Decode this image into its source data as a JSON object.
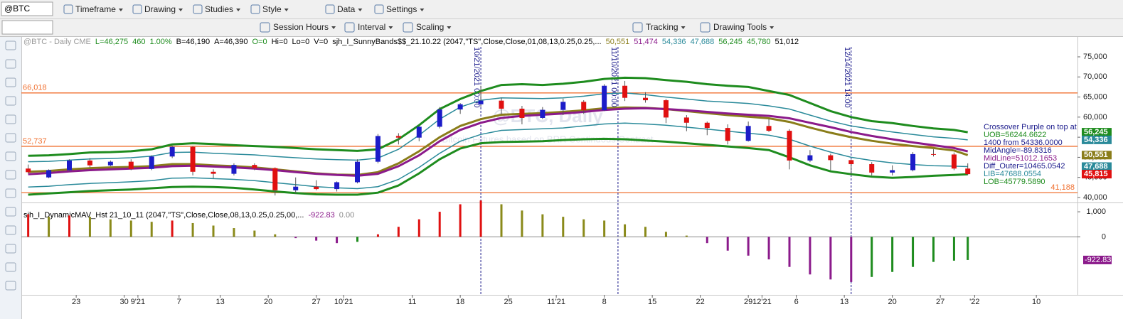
{
  "toolbar": {
    "symbol": "@BTC",
    "row1": [
      "Timeframe",
      "Drawing",
      "Studies",
      "Style",
      "Data",
      "Settings"
    ],
    "row2": [
      "Session Hours",
      "Interval",
      "Scaling",
      "Tracking",
      "Drawing Tools"
    ]
  },
  "chart_data": [
    {
      "type": "candlestick",
      "header": [
        {
          "text": "@BTC - Daily  CME",
          "color": "#999999"
        },
        {
          "text": "L=46,275",
          "color": "#1e8c1e"
        },
        {
          "text": "460",
          "color": "#1e8c1e"
        },
        {
          "text": "1.00%",
          "color": "#1e8c1e"
        },
        {
          "text": "B=46,190",
          "color": "#000000"
        },
        {
          "text": "A=46,390",
          "color": "#000000"
        },
        {
          "text": "O=0",
          "color": "#1e8c1e"
        },
        {
          "text": "Hi=0",
          "color": "#000000"
        },
        {
          "text": "Lo=0",
          "color": "#000000"
        },
        {
          "text": "V=0",
          "color": "#000000"
        },
        {
          "text": "sjh_I_SunnyBands$$_21.10.22 (2047,\"TS\",Close,Close,01,08,13,0.25,0.25,...",
          "color": "#000000"
        },
        {
          "text": "50,551",
          "color": "#8a7d1a"
        },
        {
          "text": "51,474",
          "color": "#8b1a8b"
        },
        {
          "text": "54,336",
          "color": "#2a8a9a"
        },
        {
          "text": "47,688",
          "color": "#2a8a9a"
        },
        {
          "text": "56,245",
          "color": "#1e8c1e"
        },
        {
          "text": "45,780",
          "color": "#1e8c1e"
        },
        {
          "text": "51,012",
          "color": "#000000"
        }
      ],
      "watermark": [
        "@BTC, Daily",
        "Bitcoin Futures based on BRR Continuous Contract"
      ],
      "x": [
        "2021-08-16",
        "2021-08-19",
        "2021-08-22",
        "2021-08-25",
        "2021-08-28",
        "2021-08-31",
        "2021-09-03",
        "2021-09-06",
        "2021-09-09",
        "2021-09-12",
        "2021-09-15",
        "2021-09-18",
        "2021-09-21",
        "2021-09-24",
        "2021-09-27",
        "2021-09-30",
        "2021-10-03",
        "2021-10-06",
        "2021-10-09",
        "2021-10-12",
        "2021-10-15",
        "2021-10-18",
        "2021-10-21",
        "2021-10-24",
        "2021-10-27",
        "2021-10-30",
        "2021-11-02",
        "2021-11-05",
        "2021-11-08",
        "2021-11-11",
        "2021-11-14",
        "2021-11-17",
        "2021-11-20",
        "2021-11-23",
        "2021-11-26",
        "2021-11-29",
        "2021-12-02",
        "2021-12-05",
        "2021-12-08",
        "2021-12-11",
        "2021-12-14",
        "2021-12-17",
        "2021-12-20",
        "2021-12-23",
        "2021-12-26",
        "2021-12-29",
        "2021-12-31"
      ],
      "open": [
        47200,
        45000,
        46800,
        49200,
        48000,
        48900,
        47100,
        50200,
        52600,
        46400,
        45900,
        48100,
        47300,
        41800,
        42700,
        42100,
        43800,
        48900,
        55300,
        54900,
        57600,
        61900,
        63200,
        64100,
        62100,
        59800,
        61800,
        63800,
        61700,
        67800,
        64800,
        64200,
        59900,
        58600,
        57300,
        54100,
        57800,
        56600,
        49200,
        50500,
        49300,
        48300,
        46200,
        46800,
        50800,
        50700,
        47200
      ],
      "high": [
        48200,
        47000,
        49500,
        49800,
        49200,
        49500,
        50500,
        52900,
        52800,
        47000,
        48500,
        48500,
        47500,
        45000,
        44300,
        44000,
        49500,
        55800,
        56000,
        57800,
        62500,
        63500,
        67800,
        64800,
        62800,
        62500,
        64600,
        64200,
        68200,
        69000,
        66200,
        64500,
        60500,
        58900,
        58200,
        58900,
        59500,
        57000,
        51800,
        50900,
        49500,
        48800,
        48000,
        51300,
        52000,
        51200,
        48500
      ],
      "low": [
        46000,
        44800,
        46500,
        47500,
        47800,
        46800,
        46800,
        49800,
        45500,
        44800,
        45500,
        46800,
        40500,
        41000,
        41800,
        41500,
        43500,
        48500,
        53200,
        54000,
        57200,
        60800,
        62500,
        60800,
        58200,
        59500,
        60500,
        60800,
        61500,
        64000,
        63600,
        58500,
        56500,
        55500,
        53200,
        53900,
        56300,
        47000,
        48800,
        46800,
        45800,
        45500,
        45500,
        46500,
        50200,
        46800,
        45600
      ],
      "close": [
        46300,
        46800,
        49200,
        48000,
        48900,
        47100,
        50200,
        52600,
        46400,
        45900,
        48100,
        47300,
        41800,
        42700,
        42100,
        43800,
        48900,
        55300,
        54900,
        57600,
        61900,
        63200,
        64100,
        62100,
        59800,
        61800,
        63800,
        61700,
        67800,
        64800,
        64200,
        59900,
        58600,
        57300,
        54100,
        57800,
        56600,
        49200,
        50500,
        49300,
        48300,
        46200,
        46800,
        50800,
        50700,
        47200,
        45815
      ],
      "up_color": "#1c1cc8",
      "down_color": "#e01010",
      "bands": [
        {
          "color": "#1e8c1e",
          "values": [
            50400,
            50500,
            50800,
            51200,
            51300,
            51500,
            52000,
            53200,
            53500,
            53300,
            53000,
            52800,
            52600,
            52300,
            52000,
            51800,
            51600,
            52000,
            54500,
            58000,
            62000,
            64500,
            66500,
            68000,
            68200,
            68000,
            68300,
            68800,
            69500,
            69800,
            69700,
            69200,
            68800,
            68200,
            67800,
            67500,
            66500,
            65500,
            63500,
            61500,
            60000,
            59000,
            58500,
            57800,
            57200,
            56800,
            56245
          ]
        },
        {
          "color": "#2a8a9a",
          "values": [
            48900,
            49000,
            49300,
            49600,
            49700,
            49900,
            50300,
            51200,
            51300,
            51000,
            50800,
            50600,
            50200,
            49900,
            49600,
            49400,
            49300,
            49800,
            52000,
            55500,
            59500,
            62500,
            64200,
            64800,
            64700,
            64600,
            64800,
            65200,
            65800,
            66000,
            65600,
            65000,
            64500,
            64000,
            63700,
            63400,
            62800,
            62000,
            60500,
            59000,
            57800,
            57000,
            56300,
            55700,
            55100,
            54700,
            54336
          ]
        },
        {
          "color": "#2a8a9a",
          "values": [
            42600,
            42800,
            43200,
            43500,
            43700,
            43900,
            44200,
            44800,
            44900,
            44700,
            44500,
            44200,
            43700,
            43200,
            42700,
            42400,
            42200,
            42700,
            44500,
            47500,
            51000,
            54000,
            55700,
            56700,
            56900,
            57100,
            57300,
            57800,
            58300,
            58500,
            58300,
            58000,
            57500,
            57000,
            56500,
            56000,
            55500,
            54500,
            52800,
            51300,
            50000,
            49200,
            48600,
            48200,
            47900,
            47800,
            47688
          ]
        },
        {
          "color": "#1e8c1e",
          "values": [
            40700,
            41000,
            41300,
            41600,
            41800,
            42000,
            42300,
            42600,
            42700,
            42600,
            42400,
            42000,
            41500,
            41100,
            40800,
            40700,
            40700,
            41200,
            43000,
            46000,
            49500,
            52200,
            53500,
            53800,
            53900,
            54000,
            54300,
            54500,
            54600,
            54500,
            54200,
            53900,
            53500,
            53100,
            52700,
            52300,
            51800,
            50000,
            48000,
            46500,
            45800,
            45200,
            44900,
            45100,
            45400,
            45600,
            45780
          ]
        },
        {
          "color": "#8a7d1a",
          "values": [
            46400,
            46600,
            47000,
            47300,
            47500,
            47600,
            47800,
            48300,
            48300,
            48000,
            47800,
            47500,
            47000,
            46500,
            46000,
            45700,
            45600,
            46300,
            48500,
            51500,
            55000,
            57800,
            59500,
            60600,
            60800,
            61000,
            61300,
            61700,
            62200,
            62400,
            62300,
            62000,
            61500,
            61000,
            60500,
            60100,
            59700,
            58800,
            57400,
            56100,
            55000,
            54100,
            53400,
            52800,
            52300,
            51700,
            50551
          ]
        },
        {
          "color": "#8b1a8b",
          "values": [
            45800,
            46100,
            46500,
            46800,
            47000,
            47200,
            47400,
            47800,
            47900,
            47700,
            47500,
            47200,
            46800,
            46300,
            45900,
            45600,
            45400,
            45900,
            47800,
            50500,
            54000,
            56800,
            58600,
            59800,
            60300,
            60600,
            60900,
            61300,
            61800,
            62100,
            62200,
            62000,
            61700,
            61300,
            60900,
            60600,
            60300,
            59700,
            58600,
            57500,
            56300,
            55300,
            54500,
            53700,
            53000,
            52300,
            51474
          ]
        }
      ],
      "hlines": [
        {
          "value": 66018,
          "label": "66,018",
          "color": "#f07030"
        },
        {
          "value": 52737,
          "label": "52,737",
          "color": "#f07030"
        },
        {
          "value": 41188,
          "label": "41,188",
          "color": "#f07030"
        }
      ],
      "vlines": [
        {
          "x": "2021-10-21",
          "label": "10/21/2021 00:00"
        },
        {
          "x": "2021-11-10",
          "label": "11/10/2021 00:00"
        },
        {
          "x": "2021-12-14",
          "label": "12/14/2021 14:00"
        }
      ],
      "price_tags": [
        {
          "value": 56245,
          "label": "56,245",
          "color": "#1e8c1e"
        },
        {
          "value": 54336,
          "label": "54,336",
          "color": "#2a8a9a"
        },
        {
          "value": 50551,
          "label": "50,551",
          "color": "#8a7d1a"
        },
        {
          "value": 47688,
          "label": "47,688",
          "color": "#2a8a9a"
        },
        {
          "value": 45815,
          "label": "45,815",
          "color": "#e01010"
        }
      ],
      "notes": [
        {
          "text": "Crossover Purple on top at",
          "color": "#1a1a8b"
        },
        {
          "text": "UOB=56244.6622",
          "color": "#1e8c1e"
        },
        {
          "text": "1400 from 54336.0000",
          "color": "#1a1a8b"
        },
        {
          "text": "MidAngle=-89.8316",
          "color": "#1a1a8b"
        },
        {
          "text": "MidLine=51012.1653",
          "color": "#8b1a8b"
        },
        {
          "text": "Diff_Outer=10465.0542",
          "color": "#1a1a8b"
        },
        {
          "text": "LIB=47688.0554",
          "color": "#2a8a9a"
        },
        {
          "text": "LOB=45779.5890",
          "color": "#1e8c1e"
        }
      ],
      "xlim": [
        "2021-08-15",
        "2022-01-16"
      ],
      "xticks": [
        {
          "value": "2021-08-23",
          "label": "23"
        },
        {
          "value": "2021-08-30",
          "label": "30"
        },
        {
          "value": "2021-09-01",
          "label": "9'21"
        },
        {
          "value": "2021-09-07",
          "label": "7"
        },
        {
          "value": "2021-09-13",
          "label": "13"
        },
        {
          "value": "2021-09-20",
          "label": "20"
        },
        {
          "value": "2021-09-27",
          "label": "27"
        },
        {
          "value": "2021-10-01",
          "label": "10'21"
        },
        {
          "value": "2021-10-11",
          "label": "11"
        },
        {
          "value": "2021-10-18",
          "label": "18"
        },
        {
          "value": "2021-10-25",
          "label": "25"
        },
        {
          "value": "2021-11-01",
          "label": "11'21"
        },
        {
          "value": "2021-11-08",
          "label": "8"
        },
        {
          "value": "2021-11-15",
          "label": "15"
        },
        {
          "value": "2021-11-22",
          "label": "22"
        },
        {
          "value": "2021-11-29",
          "label": "29"
        },
        {
          "value": "2021-12-01",
          "label": "12'21"
        },
        {
          "value": "2021-12-06",
          "label": "6"
        },
        {
          "value": "2021-12-13",
          "label": "13"
        },
        {
          "value": "2021-12-20",
          "label": "20"
        },
        {
          "value": "2021-12-27",
          "label": "27"
        },
        {
          "value": "2022-01-01",
          "label": "'22"
        },
        {
          "value": "2022-01-10",
          "label": "10"
        }
      ],
      "ylim": [
        38760,
        78180
      ],
      "yticks": [
        {
          "value": 40000,
          "label": "40,000"
        },
        {
          "value": 45000,
          "label": "45,000"
        },
        {
          "value": 50000,
          "label": "50,000"
        },
        {
          "value": 55000,
          "label": "55,000"
        },
        {
          "value": 60000,
          "label": "60,000"
        },
        {
          "value": 65000,
          "label": "65,000"
        },
        {
          "value": 70000,
          "label": "70,000"
        },
        {
          "value": 75000,
          "label": "75,000"
        }
      ]
    },
    {
      "type": "bar",
      "header": [
        {
          "text": "sjh_I_DynamicMAV_Hst 21_10_11 (2047,\"TS\",Close,Close,08,13,0.25,0.25,00,...",
          "color": "#000000"
        },
        {
          "text": "-922.83",
          "color": "#8b1a8b"
        },
        {
          "text": "0.00",
          "color": "#888888"
        }
      ],
      "x": [
        "2021-08-16",
        "2021-08-19",
        "2021-08-22",
        "2021-08-25",
        "2021-08-28",
        "2021-08-31",
        "2021-09-03",
        "2021-09-06",
        "2021-09-09",
        "2021-09-12",
        "2021-09-15",
        "2021-09-18",
        "2021-09-21",
        "2021-09-24",
        "2021-09-27",
        "2021-09-30",
        "2021-10-03",
        "2021-10-06",
        "2021-10-09",
        "2021-10-12",
        "2021-10-15",
        "2021-10-18",
        "2021-10-21",
        "2021-10-24",
        "2021-10-27",
        "2021-10-30",
        "2021-11-02",
        "2021-11-05",
        "2021-11-08",
        "2021-11-11",
        "2021-11-14",
        "2021-11-17",
        "2021-11-20",
        "2021-11-23",
        "2021-11-26",
        "2021-11-29",
        "2021-12-02",
        "2021-12-05",
        "2021-12-08",
        "2021-12-11",
        "2021-12-14",
        "2021-12-17",
        "2021-12-20",
        "2021-12-23",
        "2021-12-26",
        "2021-12-29",
        "2021-12-31"
      ],
      "values": [
        900,
        800,
        850,
        800,
        700,
        650,
        600,
        650,
        550,
        450,
        350,
        250,
        100,
        -50,
        -150,
        -250,
        -200,
        100,
        400,
        700,
        1000,
        1300,
        1450,
        1300,
        1050,
        900,
        800,
        700,
        650,
        500,
        400,
        200,
        50,
        -250,
        -550,
        -750,
        -900,
        -1200,
        -1500,
        -1700,
        -1800,
        -1600,
        -1400,
        -1200,
        -1000,
        -950,
        -922.83
      ],
      "colors": {
        "up_rising": "#e01010",
        "up_falling": "#8a8a1a",
        "down_falling": "#8b1a8b",
        "down_rising": "#1e8c1e"
      },
      "value_tag": {
        "value": -922.83,
        "label": "-922.83",
        "color": "#8b1a8b"
      },
      "ylim": [
        -2314,
        1371
      ],
      "yticks": [
        {
          "value": 1000,
          "label": "1,000"
        },
        0
      ]
    }
  ]
}
